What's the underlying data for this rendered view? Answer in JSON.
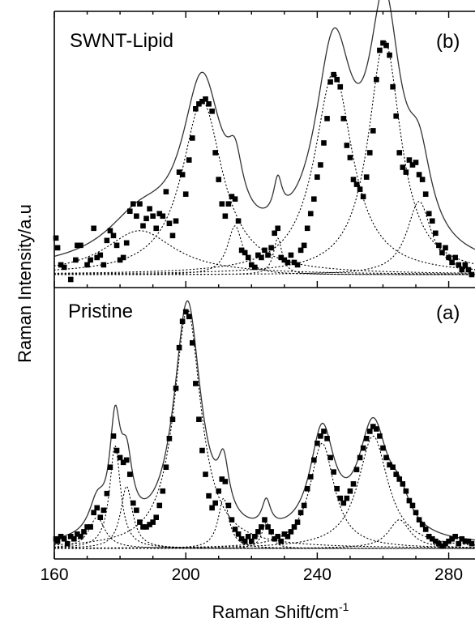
{
  "chart_data": {
    "type": "scatter",
    "xlabel_main": "Raman Shift/cm",
    "xlabel_sup": "-1",
    "ylabel": "Raman Intensity/a.u",
    "xlim": [
      160,
      288
    ],
    "x_ticks": [
      160,
      200,
      240,
      280
    ],
    "y_ticks_shown": false,
    "panels": [
      {
        "id": "b",
        "name": "SWNT-Lipid",
        "letter": "(b)",
        "position": "top",
        "ylim": [
          0,
          1.02
        ],
        "baseline": 0.02,
        "fit_offset": 0.01,
        "peaks": [
          {
            "center": 186.0,
            "height": 0.18,
            "width": 13.0
          },
          {
            "center": 205.0,
            "height": 0.71,
            "width": 7.5
          },
          {
            "center": 215.0,
            "height": 0.2,
            "width": 2.8
          },
          {
            "center": 228.0,
            "height": 0.15,
            "width": 1.6
          },
          {
            "center": 245.0,
            "height": 0.83,
            "width": 7.0
          },
          {
            "center": 260.5,
            "height": 0.96,
            "width": 6.0
          },
          {
            "center": 271.0,
            "height": 0.3,
            "width": 4.5
          }
        ],
        "points": [
          [
            160.5,
            0.17
          ],
          [
            161.0,
            0.13
          ],
          [
            162.0,
            0.06
          ],
          [
            163.0,
            0.05
          ],
          [
            165.0,
            0.0
          ],
          [
            166.5,
            0.08
          ],
          [
            167.0,
            0.14
          ],
          [
            168.0,
            0.14
          ],
          [
            170.0,
            0.06
          ],
          [
            171.0,
            0.08
          ],
          [
            172.0,
            0.21
          ],
          [
            173.0,
            0.09
          ],
          [
            174.0,
            0.1
          ],
          [
            175.0,
            0.06
          ],
          [
            176.0,
            0.16
          ],
          [
            177.0,
            0.2
          ],
          [
            178.0,
            0.18
          ],
          [
            179.0,
            0.14
          ],
          [
            180.0,
            0.08
          ],
          [
            181.0,
            0.09
          ],
          [
            182.0,
            0.15
          ],
          [
            183.0,
            0.28
          ],
          [
            184.0,
            0.31
          ],
          [
            185.0,
            0.26
          ],
          [
            186.0,
            0.31
          ],
          [
            187.0,
            0.22
          ],
          [
            188.0,
            0.25
          ],
          [
            189.0,
            0.29
          ],
          [
            190.0,
            0.26
          ],
          [
            191.0,
            0.21
          ],
          [
            192.0,
            0.27
          ],
          [
            193.0,
            0.26
          ],
          [
            194.0,
            0.36
          ],
          [
            195.0,
            0.23
          ],
          [
            196.0,
            0.18
          ],
          [
            197.0,
            0.24
          ],
          [
            198.0,
            0.44
          ],
          [
            199.0,
            0.43
          ],
          [
            200.0,
            0.35
          ],
          [
            201.0,
            0.49
          ],
          [
            202.0,
            0.58
          ],
          [
            203.0,
            0.7
          ],
          [
            204.0,
            0.72
          ],
          [
            205.0,
            0.73
          ],
          [
            206.0,
            0.74
          ],
          [
            207.0,
            0.72
          ],
          [
            208.0,
            0.69
          ],
          [
            209.0,
            0.52
          ],
          [
            210.0,
            0.41
          ],
          [
            211.0,
            0.31
          ],
          [
            212.0,
            0.26
          ],
          [
            213.0,
            0.31
          ],
          [
            214.0,
            0.34
          ],
          [
            215.0,
            0.33
          ],
          [
            216.0,
            0.24
          ],
          [
            217.0,
            0.12
          ],
          [
            218.0,
            0.11
          ],
          [
            219.0,
            0.09
          ],
          [
            220.0,
            0.06
          ],
          [
            221.0,
            0.05
          ],
          [
            222.0,
            0.1
          ],
          [
            223.0,
            0.09
          ],
          [
            224.0,
            0.12
          ],
          [
            225.0,
            0.1
          ],
          [
            226.0,
            0.13
          ],
          [
            227.0,
            0.19
          ],
          [
            228.0,
            0.21
          ],
          [
            229.0,
            0.09
          ],
          [
            230.0,
            0.08
          ],
          [
            231.0,
            0.07
          ],
          [
            232.0,
            0.1
          ],
          [
            233.0,
            0.07
          ],
          [
            234.0,
            0.06
          ],
          [
            235.0,
            0.12
          ],
          [
            236.0,
            0.14
          ],
          [
            237.0,
            0.21
          ],
          [
            238.0,
            0.27
          ],
          [
            239.0,
            0.33
          ],
          [
            240.0,
            0.42
          ],
          [
            241.0,
            0.47
          ],
          [
            242.0,
            0.56
          ],
          [
            243.0,
            0.66
          ],
          [
            244.0,
            0.81
          ],
          [
            245.0,
            0.84
          ],
          [
            246.0,
            0.82
          ],
          [
            247.0,
            0.79
          ],
          [
            248.0,
            0.66
          ],
          [
            249.0,
            0.55
          ],
          [
            250.0,
            0.5
          ],
          [
            251.0,
            0.41
          ],
          [
            252.0,
            0.39
          ],
          [
            253.0,
            0.37
          ],
          [
            254.0,
            0.34
          ],
          [
            255.0,
            0.42
          ],
          [
            256.0,
            0.52
          ],
          [
            257.0,
            0.61
          ],
          [
            258.0,
            0.82
          ],
          [
            259.0,
            0.94
          ],
          [
            260.0,
            0.97
          ],
          [
            261.0,
            0.96
          ],
          [
            262.0,
            0.92
          ],
          [
            263.0,
            0.79
          ],
          [
            264.0,
            0.67
          ],
          [
            265.0,
            0.52
          ],
          [
            266.0,
            0.46
          ],
          [
            267.0,
            0.44
          ],
          [
            268.0,
            0.49
          ],
          [
            269.0,
            0.47
          ],
          [
            270.0,
            0.48
          ],
          [
            271.0,
            0.43
          ],
          [
            272.0,
            0.41
          ],
          [
            273.0,
            0.35
          ],
          [
            274.0,
            0.27
          ],
          [
            275.0,
            0.24
          ],
          [
            276.0,
            0.19
          ],
          [
            277.0,
            0.14
          ],
          [
            278.0,
            0.11
          ],
          [
            279.0,
            0.13
          ],
          [
            280.0,
            0.09
          ],
          [
            281.0,
            0.07
          ],
          [
            282.0,
            0.09
          ],
          [
            283.0,
            0.06
          ],
          [
            284.0,
            0.04
          ],
          [
            285.0,
            0.06
          ],
          [
            286.0,
            0.04
          ],
          [
            287.0,
            0.02
          ]
        ]
      },
      {
        "id": "a",
        "name": "Pristine",
        "letter": "(a)",
        "position": "bottom",
        "ylim": [
          0,
          1.02
        ],
        "baseline": 0.01,
        "fit_offset": 0.01,
        "peaks": [
          {
            "center": 173.0,
            "height": 0.13,
            "width": 3.0
          },
          {
            "center": 178.5,
            "height": 0.43,
            "width": 2.0
          },
          {
            "center": 182.0,
            "height": 0.26,
            "width": 2.2
          },
          {
            "center": 200.5,
            "height": 1.0,
            "width": 5.0
          },
          {
            "center": 211.5,
            "height": 0.21,
            "width": 2.0
          },
          {
            "center": 224.5,
            "height": 0.11,
            "width": 1.6
          },
          {
            "center": 241.5,
            "height": 0.44,
            "width": 4.5
          },
          {
            "center": 257.0,
            "height": 0.47,
            "width": 5.5
          },
          {
            "center": 265.0,
            "height": 0.12,
            "width": 4.0
          }
        ],
        "points": [
          [
            160.5,
            0.05
          ],
          [
            161.0,
            0.04
          ],
          [
            162.0,
            0.06
          ],
          [
            163.0,
            0.05
          ],
          [
            164.0,
            0.03
          ],
          [
            165.0,
            0.06
          ],
          [
            166.0,
            0.05
          ],
          [
            167.0,
            0.07
          ],
          [
            168.0,
            0.06
          ],
          [
            169.0,
            0.08
          ],
          [
            170.0,
            0.1
          ],
          [
            171.0,
            0.1
          ],
          [
            172.0,
            0.16
          ],
          [
            173.0,
            0.18
          ],
          [
            174.0,
            0.14
          ],
          [
            175.0,
            0.17
          ],
          [
            176.0,
            0.24
          ],
          [
            177.0,
            0.35
          ],
          [
            178.0,
            0.48
          ],
          [
            179.0,
            0.42
          ],
          [
            180.0,
            0.39
          ],
          [
            181.0,
            0.37
          ],
          [
            182.0,
            0.38
          ],
          [
            183.0,
            0.32
          ],
          [
            184.0,
            0.2
          ],
          [
            185.0,
            0.17
          ],
          [
            186.0,
            0.12
          ],
          [
            187.0,
            0.1
          ],
          [
            188.0,
            0.1
          ],
          [
            189.0,
            0.11
          ],
          [
            190.0,
            0.12
          ],
          [
            191.0,
            0.14
          ],
          [
            192.0,
            0.19
          ],
          [
            193.0,
            0.25
          ],
          [
            194.0,
            0.35
          ],
          [
            195.0,
            0.47
          ],
          [
            196.0,
            0.55
          ],
          [
            197.0,
            0.68
          ],
          [
            198.0,
            0.85
          ],
          [
            199.0,
            0.96
          ],
          [
            200.0,
            1.0
          ],
          [
            201.0,
            0.98
          ],
          [
            202.0,
            0.87
          ],
          [
            203.0,
            0.7
          ],
          [
            204.0,
            0.55
          ],
          [
            205.0,
            0.42
          ],
          [
            206.0,
            0.32
          ],
          [
            207.0,
            0.23
          ],
          [
            208.0,
            0.18
          ],
          [
            209.0,
            0.2
          ],
          [
            210.0,
            0.25
          ],
          [
            211.0,
            0.3
          ],
          [
            212.0,
            0.29
          ],
          [
            213.0,
            0.19
          ],
          [
            214.0,
            0.13
          ],
          [
            215.0,
            0.09
          ],
          [
            216.0,
            0.07
          ],
          [
            217.0,
            0.05
          ],
          [
            218.0,
            0.04
          ],
          [
            219.0,
            0.06
          ],
          [
            220.0,
            0.04
          ],
          [
            221.0,
            0.06
          ],
          [
            222.0,
            0.08
          ],
          [
            223.0,
            0.1
          ],
          [
            224.0,
            0.13
          ],
          [
            225.0,
            0.1
          ],
          [
            226.0,
            0.08
          ],
          [
            227.0,
            0.05
          ],
          [
            228.0,
            0.06
          ],
          [
            229.0,
            0.04
          ],
          [
            230.0,
            0.07
          ],
          [
            231.0,
            0.06
          ],
          [
            232.0,
            0.08
          ],
          [
            233.0,
            0.1
          ],
          [
            234.0,
            0.12
          ],
          [
            235.0,
            0.16
          ],
          [
            236.0,
            0.19
          ],
          [
            237.0,
            0.26
          ],
          [
            238.0,
            0.31
          ],
          [
            239.0,
            0.38
          ],
          [
            240.0,
            0.45
          ],
          [
            241.0,
            0.48
          ],
          [
            242.0,
            0.5
          ],
          [
            243.0,
            0.47
          ],
          [
            244.0,
            0.39
          ],
          [
            245.0,
            0.33
          ],
          [
            246.0,
            0.26
          ],
          [
            247.0,
            0.22
          ],
          [
            248.0,
            0.2
          ],
          [
            249.0,
            0.22
          ],
          [
            250.0,
            0.25
          ],
          [
            251.0,
            0.28
          ],
          [
            252.0,
            0.34
          ],
          [
            253.0,
            0.39
          ],
          [
            254.0,
            0.43
          ],
          [
            255.0,
            0.47
          ],
          [
            256.0,
            0.5
          ],
          [
            257.0,
            0.52
          ],
          [
            258.0,
            0.51
          ],
          [
            259.0,
            0.48
          ],
          [
            260.0,
            0.43
          ],
          [
            261.0,
            0.39
          ],
          [
            262.0,
            0.36
          ],
          [
            263.0,
            0.35
          ],
          [
            264.0,
            0.32
          ],
          [
            265.0,
            0.3
          ],
          [
            266.0,
            0.28
          ],
          [
            267.0,
            0.25
          ],
          [
            268.0,
            0.21
          ],
          [
            269.0,
            0.19
          ],
          [
            270.0,
            0.16
          ],
          [
            271.0,
            0.13
          ],
          [
            272.0,
            0.11
          ],
          [
            273.0,
            0.09
          ],
          [
            274.0,
            0.06
          ],
          [
            275.0,
            0.05
          ],
          [
            276.0,
            0.04
          ],
          [
            277.0,
            0.03
          ],
          [
            278.0,
            0.02
          ],
          [
            279.0,
            0.03
          ],
          [
            280.0,
            0.04
          ],
          [
            281.0,
            0.05
          ],
          [
            282.0,
            0.06
          ],
          [
            283.0,
            0.03
          ],
          [
            284.0,
            0.05
          ],
          [
            285.0,
            0.04
          ],
          [
            286.0,
            0.04
          ],
          [
            287.0,
            0.03
          ]
        ]
      }
    ]
  }
}
